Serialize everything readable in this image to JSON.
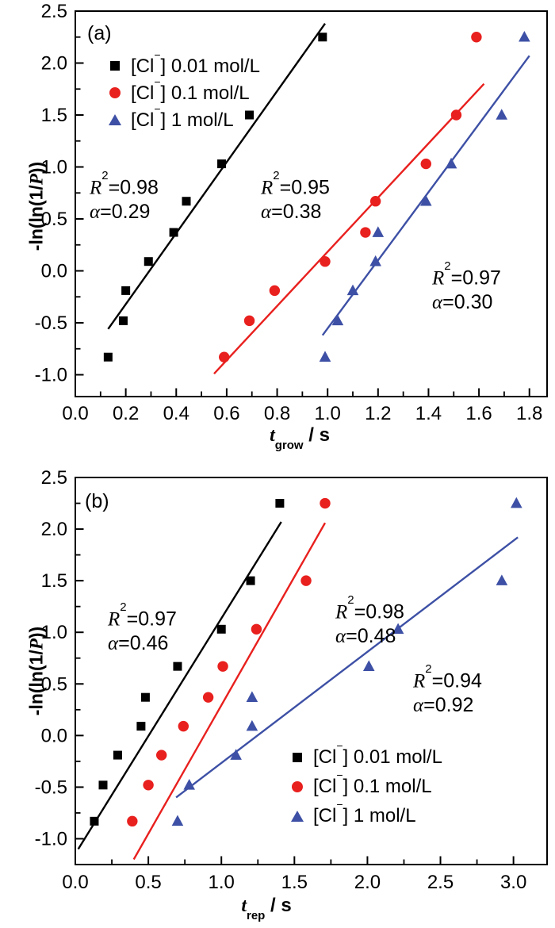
{
  "chart_data": [
    {
      "type": "scatter",
      "panel_label": "(a)",
      "xlabel_text": "t_grow / s",
      "xlabel": {
        "it": "t",
        "sub": "grow",
        "post": " / s"
      },
      "ylabel_text": "-ln(ln(1/P))",
      "ylabel": {
        "pre": "-ln(ln(1/",
        "it": "P",
        "post": "))"
      },
      "xlim": [
        0,
        1.87
      ],
      "ylim": [
        -1.21,
        2.5
      ],
      "grid": false,
      "x_ticks": {
        "values": [
          0,
          0.2,
          0.4,
          0.6,
          0.8,
          1.0,
          1.2,
          1.4,
          1.6,
          1.8
        ],
        "labels": [
          "0.0",
          "0.2",
          "0.4",
          "0.6",
          "0.8",
          "1.0",
          "1.2",
          "1.4",
          "1.6",
          "1.8"
        ],
        "minor_step": 0.1
      },
      "y_ticks": {
        "values": [
          2.5,
          2.0,
          1.5,
          1.0,
          0.5,
          0.0,
          -0.5,
          -1.0
        ],
        "labels": [
          "2.5",
          "2.0",
          "1.5",
          "1.0",
          "0.5",
          "0.0",
          "-0.5",
          "-1.0"
        ],
        "minor_step": 0.25
      },
      "legend": {
        "position": "top-left",
        "items": [
          {
            "marker": "square",
            "color": "#000000",
            "label": {
              "pre": "[Cl",
              "sup": "−",
              "post": "] 0.01 mol/L"
            }
          },
          {
            "marker": "circle",
            "color": "#e8201e",
            "label": {
              "pre": "[Cl",
              "sup": "−",
              "post": "] 0.1 mol/L"
            }
          },
          {
            "marker": "triangle",
            "color": "#3d50a5",
            "label": {
              "pre": "[Cl",
              "sup": "−",
              "post": "] 1 mol/L"
            }
          }
        ]
      },
      "series": [
        {
          "name": "[Cl−] 0.01 mol/L",
          "marker": "square",
          "color": "#000000",
          "r2": 0.98,
          "alpha": 0.29,
          "stats": {
            "r_sym": "R",
            "r_sup": "2",
            "r_eq": "=0.98",
            "a_sym": "α",
            "a_eq": "=0.29"
          },
          "points": [
            [
              0.13,
              -0.83
            ],
            [
              0.19,
              -0.48
            ],
            [
              0.2,
              -0.19
            ],
            [
              0.29,
              0.09
            ],
            [
              0.39,
              0.37
            ],
            [
              0.44,
              0.67
            ],
            [
              0.58,
              1.03
            ],
            [
              0.69,
              1.5
            ],
            [
              0.98,
              2.25
            ]
          ],
          "fit_line": {
            "from": [
              0.13,
              -0.56
            ],
            "to": [
              0.99,
              2.38
            ]
          }
        },
        {
          "name": "[Cl−] 0.1 mol/L",
          "marker": "circle",
          "color": "#e8201e",
          "r2": 0.95,
          "alpha": 0.38,
          "stats": {
            "r_sym": "R",
            "r_sup": "2",
            "r_eq": "=0.95",
            "a_sym": "α",
            "a_eq": "=0.38"
          },
          "points": [
            [
              0.59,
              -0.83
            ],
            [
              0.69,
              -0.48
            ],
            [
              0.79,
              -0.19
            ],
            [
              0.99,
              0.09
            ],
            [
              1.15,
              0.37
            ],
            [
              1.19,
              0.67
            ],
            [
              1.39,
              1.03
            ],
            [
              1.51,
              1.5
            ],
            [
              1.59,
              2.25
            ]
          ],
          "fit_line": {
            "from": [
              0.55,
              -0.99
            ],
            "to": [
              1.62,
              1.8
            ]
          }
        },
        {
          "name": "[Cl−] 1 mol/L",
          "marker": "triangle",
          "color": "#3d50a5",
          "r2": 0.97,
          "alpha": 0.3,
          "stats": {
            "r_sym": "R",
            "r_sup": "2",
            "r_eq": "=0.97",
            "a_sym": "α",
            "a_eq": "=0.30"
          },
          "points": [
            [
              0.99,
              -0.83
            ],
            [
              1.04,
              -0.48
            ],
            [
              1.1,
              -0.19
            ],
            [
              1.19,
              0.09
            ],
            [
              1.2,
              0.37
            ],
            [
              1.39,
              0.67
            ],
            [
              1.49,
              1.03
            ],
            [
              1.69,
              1.5
            ],
            [
              1.78,
              2.25
            ]
          ],
          "fit_line": {
            "from": [
              0.98,
              -0.62
            ],
            "to": [
              1.8,
              2.07
            ]
          }
        }
      ]
    },
    {
      "type": "scatter",
      "panel_label": "(b)",
      "xlabel_text": "t_rep / s",
      "xlabel": {
        "it": "t",
        "sub": "rep",
        "post": " / s"
      },
      "ylabel_text": "-ln(ln(1/P))",
      "ylabel": {
        "pre": "-ln(ln(1/",
        "it": "P",
        "post": "))"
      },
      "xlim": [
        0,
        3.23
      ],
      "ylim": [
        -1.25,
        2.5
      ],
      "grid": false,
      "x_ticks": {
        "values": [
          0,
          0.5,
          1.0,
          1.5,
          2.0,
          2.5,
          3.0
        ],
        "labels": [
          "0.0",
          "0.5",
          "1.0",
          "1.5",
          "2.0",
          "2.5",
          "3.0"
        ],
        "minor_step": 0.25
      },
      "y_ticks": {
        "values": [
          2.5,
          2.0,
          1.5,
          1.0,
          0.5,
          0.0,
          -0.5,
          -1.0
        ],
        "labels": [
          "2.5",
          "2.0",
          "1.5",
          "1.0",
          "0.5",
          "0.0",
          "-0.5",
          "-1.0"
        ],
        "minor_step": 0.25
      },
      "legend": {
        "position": "bottom-right",
        "items": [
          {
            "marker": "square",
            "color": "#000000",
            "label": {
              "pre": "[Cl",
              "sup": "−",
              "post": "] 0.01 mol/L"
            }
          },
          {
            "marker": "circle",
            "color": "#e8201e",
            "label": {
              "pre": "[Cl",
              "sup": "−",
              "post": "] 0.1 mol/L"
            }
          },
          {
            "marker": "triangle",
            "color": "#3d50a5",
            "label": {
              "pre": "[Cl",
              "sup": "−",
              "post": "] 1 mol/L"
            }
          }
        ]
      },
      "series": [
        {
          "name": "[Cl−] 0.01 mol/L",
          "marker": "square",
          "color": "#000000",
          "r2": 0.97,
          "alpha": 0.46,
          "stats": {
            "r_sym": "R",
            "r_sup": "2",
            "r_eq": "=0.97",
            "a_sym": "α",
            "a_eq": "=0.46"
          },
          "points": [
            [
              0.13,
              -0.83
            ],
            [
              0.19,
              -0.48
            ],
            [
              0.29,
              -0.19
            ],
            [
              0.45,
              0.09
            ],
            [
              0.48,
              0.37
            ],
            [
              0.7,
              0.67
            ],
            [
              1.0,
              1.03
            ],
            [
              1.2,
              1.5
            ],
            [
              1.4,
              2.25
            ]
          ],
          "fit_line": {
            "from": [
              0.02,
              -1.1
            ],
            "to": [
              1.41,
              2.07
            ]
          }
        },
        {
          "name": "[Cl−] 0.1 mol/L",
          "marker": "circle",
          "color": "#e8201e",
          "r2": 0.98,
          "alpha": 0.48,
          "stats": {
            "r_sym": "R",
            "r_sup": "2",
            "r_eq": "=0.98",
            "a_sym": "α",
            "a_eq": "=0.48"
          },
          "points": [
            [
              0.39,
              -0.83
            ],
            [
              0.5,
              -0.48
            ],
            [
              0.59,
              -0.19
            ],
            [
              0.74,
              0.09
            ],
            [
              0.91,
              0.37
            ],
            [
              1.01,
              0.67
            ],
            [
              1.24,
              1.03
            ],
            [
              1.58,
              1.5
            ],
            [
              1.71,
              2.25
            ]
          ],
          "fit_line": {
            "from": [
              0.4,
              -1.2
            ],
            "to": [
              1.71,
              2.06
            ]
          }
        },
        {
          "name": "[Cl−] 1 mol/L",
          "marker": "triangle",
          "color": "#3d50a5",
          "r2": 0.94,
          "alpha": 0.92,
          "stats": {
            "r_sym": "R",
            "r_sup": "2",
            "r_eq": "=0.94",
            "a_sym": "α",
            "a_eq": "=0.92"
          },
          "points": [
            [
              0.7,
              -0.83
            ],
            [
              0.78,
              -0.48
            ],
            [
              1.1,
              -0.19
            ],
            [
              1.21,
              0.09
            ],
            [
              1.21,
              0.37
            ],
            [
              2.01,
              0.67
            ],
            [
              2.21,
              1.03
            ],
            [
              2.92,
              1.5
            ],
            [
              3.02,
              2.25
            ]
          ],
          "fit_line": {
            "from": [
              0.69,
              -0.6
            ],
            "to": [
              3.03,
              1.92
            ]
          }
        }
      ]
    }
  ]
}
